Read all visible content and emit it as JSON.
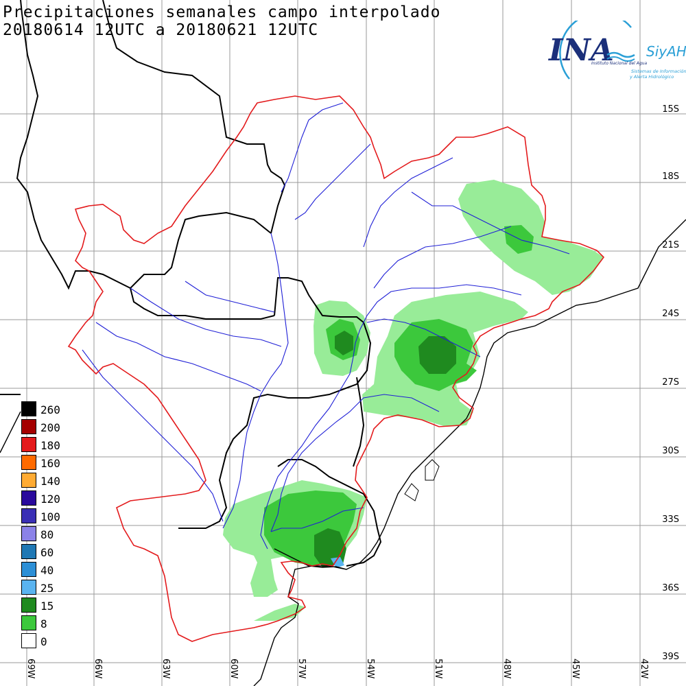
{
  "title": {
    "line1": "Precipitaciones semanales campo interpolado",
    "line2": "20180614 12UTC a 20180621 12UTC"
  },
  "logo": {
    "letters": "INA",
    "brand": "SiyAH",
    "subtitle": "Instituto Nacional del Agua",
    "tagline1": "Sistemas de Información",
    "tagline2": "y Alerta Hidrológico"
  },
  "latitudes": [
    "15S",
    "18S",
    "21S",
    "24S",
    "27S",
    "30S",
    "33S",
    "36S",
    "39S"
  ],
  "longitudes": [
    "69W",
    "66W",
    "63W",
    "60W",
    "57W",
    "54W",
    "51W",
    "48W",
    "45W",
    "42W"
  ],
  "legend": [
    {
      "label": "260",
      "color": "#000000"
    },
    {
      "label": "200",
      "color": "#a50000"
    },
    {
      "label": "180",
      "color": "#e41a1c"
    },
    {
      "label": "160",
      "color": "#ff6a00"
    },
    {
      "label": "140",
      "color": "#ffab33"
    },
    {
      "label": "120",
      "color": "#2a0a9c"
    },
    {
      "label": "100",
      "color": "#3a2fb5"
    },
    {
      "label": "80",
      "color": "#8b82e8"
    },
    {
      "label": "60",
      "color": "#1f78b4"
    },
    {
      "label": "40",
      "color": "#2c8fd6"
    },
    {
      "label": "25",
      "color": "#5ab4f0"
    },
    {
      "label": "15",
      "color": "#1f8a1f"
    },
    {
      "label": "8",
      "color": "#3cc83c"
    },
    {
      "label": "0",
      "color": "#ffffff"
    }
  ],
  "colors": {
    "basin_outline": "#e31a1c",
    "rivers": "#1f1fd6",
    "borders": "#000000",
    "grid": "#9a9a9a",
    "rain_light": "#98ec98",
    "rain_mid": "#3cc83c",
    "rain_heavy": "#1f8a1f",
    "rain_25": "#5ab4f0"
  }
}
